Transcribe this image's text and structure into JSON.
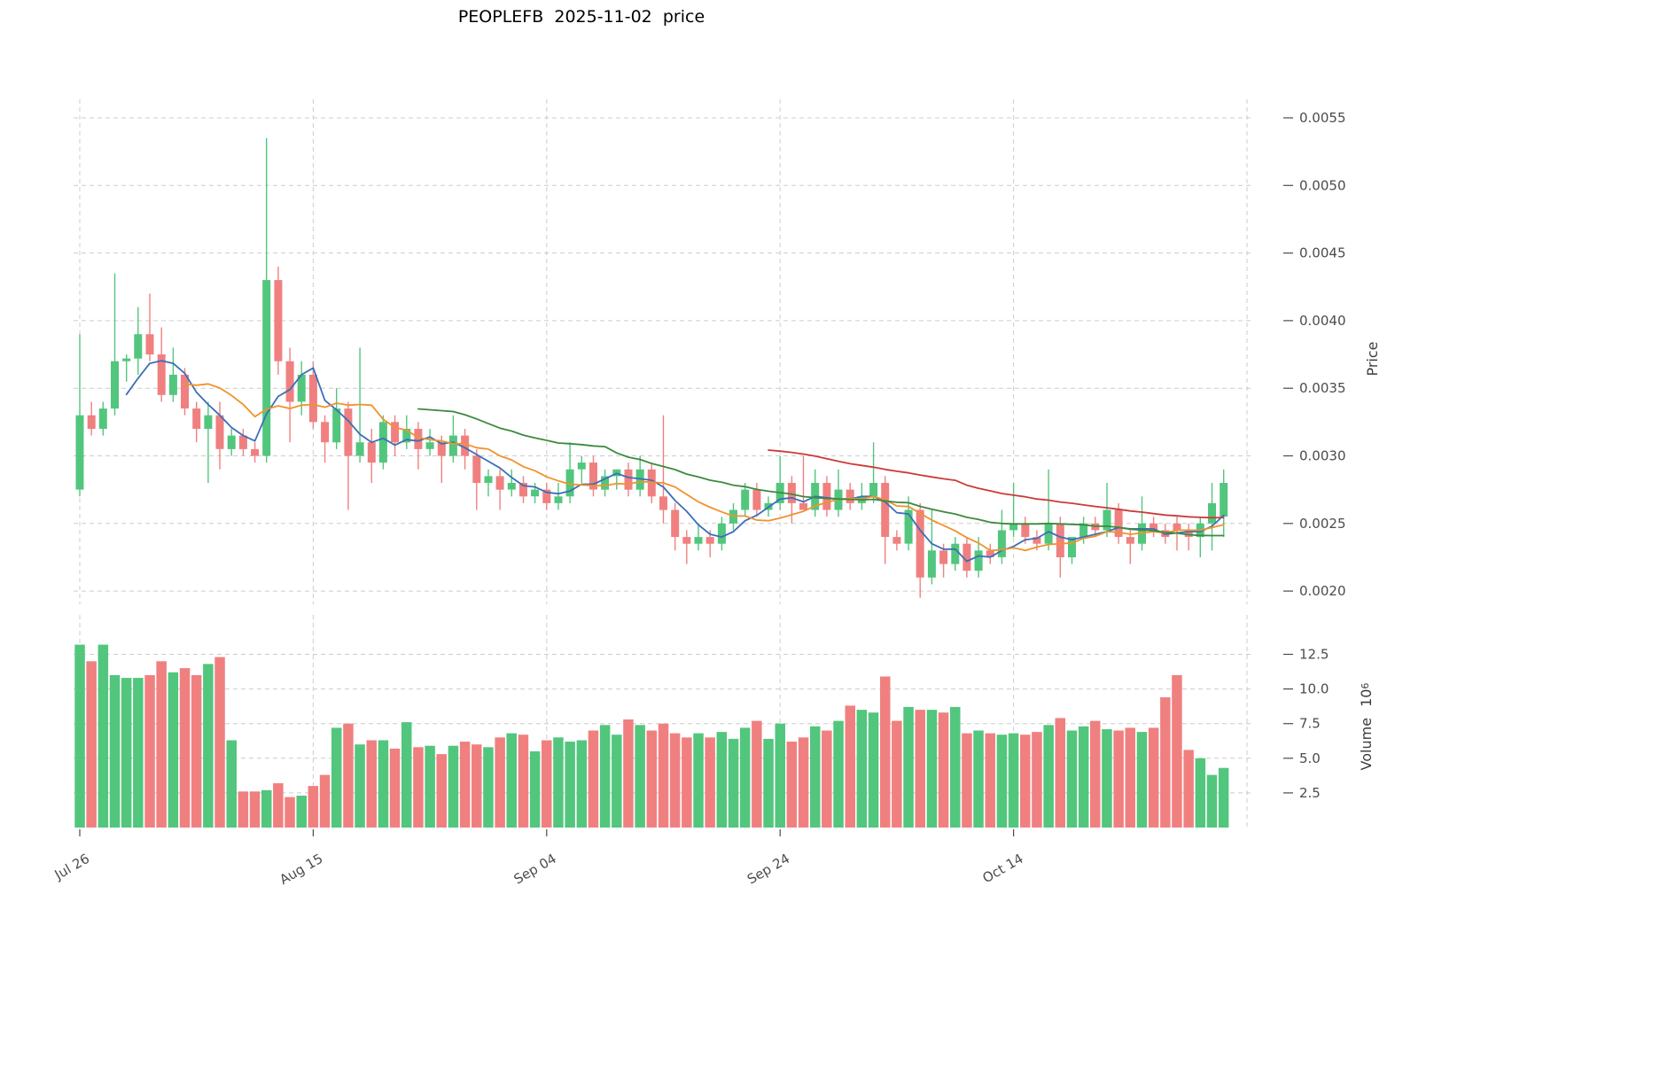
{
  "chart_data": {
    "type": "candlestick",
    "title": "PEOPLEFB  2025-11-02  price",
    "ylabel": "Price",
    "volume_label": {
      "text": "Volume",
      "base": "10",
      "exp": "6"
    },
    "grid": true,
    "ylim": [
      0.00185,
      0.0056
    ],
    "volume_ylim": [
      0,
      14
    ],
    "price_ticks": [
      0.002,
      0.0025,
      0.003,
      0.0035,
      0.004,
      0.0045,
      0.005,
      0.0055
    ],
    "volume_ticks": [
      2.5,
      5.0,
      7.5,
      10.0,
      12.5
    ],
    "x_ticks": [
      {
        "label": "Jul 26",
        "index": 0
      },
      {
        "label": "Aug 15",
        "index": 20
      },
      {
        "label": "Sep 04",
        "index": 40
      },
      {
        "label": "Sep 24",
        "index": 60
      },
      {
        "label": "Oct 14",
        "index": 80
      }
    ],
    "colors": {
      "up": "#52c67d",
      "down": "#f08080",
      "grid": "#cccccc",
      "tick_text": "#4b4b4b",
      "title_text": "#000000",
      "background": "#ffffff"
    },
    "moving_averages": [
      {
        "name": "mav5",
        "window": 5,
        "color": "#3a6fb8"
      },
      {
        "name": "mav10",
        "window": 10,
        "color": "#f0922d"
      },
      {
        "name": "mav30",
        "window": 30,
        "color": "#3c8a3f"
      },
      {
        "name": "mav60",
        "window": 60,
        "color": "#cc3a3a"
      }
    ],
    "ohlcv_columns": [
      "date",
      "open",
      "high",
      "low",
      "close",
      "volume_millions"
    ],
    "ohlcv": [
      [
        "2025-07-26",
        0.00275,
        0.0039,
        0.0027,
        0.0033,
        13.2
      ],
      [
        "2025-07-27",
        0.0033,
        0.0034,
        0.00315,
        0.0032,
        12.0
      ],
      [
        "2025-07-28",
        0.0032,
        0.0034,
        0.00315,
        0.00335,
        13.2
      ],
      [
        "2025-07-29",
        0.00335,
        0.00435,
        0.0033,
        0.0037,
        11.0
      ],
      [
        "2025-07-30",
        0.0037,
        0.00375,
        0.00355,
        0.00372,
        10.8
      ],
      [
        "2025-07-31",
        0.00372,
        0.0041,
        0.0036,
        0.0039,
        10.8
      ],
      [
        "2025-08-01",
        0.0039,
        0.0042,
        0.0037,
        0.00375,
        11.0
      ],
      [
        "2025-08-02",
        0.00375,
        0.00395,
        0.0034,
        0.00345,
        12.0
      ],
      [
        "2025-08-03",
        0.00345,
        0.0038,
        0.0034,
        0.0036,
        11.2
      ],
      [
        "2025-08-04",
        0.0036,
        0.00365,
        0.0033,
        0.00335,
        11.5
      ],
      [
        "2025-08-05",
        0.00335,
        0.0034,
        0.0031,
        0.0032,
        11.0
      ],
      [
        "2025-08-06",
        0.0032,
        0.0034,
        0.0028,
        0.0033,
        11.8
      ],
      [
        "2025-08-07",
        0.0033,
        0.0034,
        0.0029,
        0.00305,
        12.3
      ],
      [
        "2025-08-08",
        0.00305,
        0.0032,
        0.003,
        0.00315,
        6.3
      ],
      [
        "2025-08-09",
        0.00315,
        0.0032,
        0.003,
        0.00305,
        2.6
      ],
      [
        "2025-08-10",
        0.00305,
        0.0031,
        0.00295,
        0.003,
        2.6
      ],
      [
        "2025-08-11",
        0.003,
        0.00535,
        0.00295,
        0.0043,
        2.7
      ],
      [
        "2025-08-12",
        0.0043,
        0.0044,
        0.0036,
        0.0037,
        3.2
      ],
      [
        "2025-08-13",
        0.0037,
        0.0038,
        0.0031,
        0.0034,
        2.2
      ],
      [
        "2025-08-14",
        0.0034,
        0.0037,
        0.0033,
        0.0036,
        2.3
      ],
      [
        "2025-08-15",
        0.0036,
        0.0037,
        0.0032,
        0.00325,
        3.0
      ],
      [
        "2025-08-16",
        0.00325,
        0.0033,
        0.00295,
        0.0031,
        3.8
      ],
      [
        "2025-08-17",
        0.0031,
        0.0035,
        0.00305,
        0.00335,
        7.2
      ],
      [
        "2025-08-18",
        0.00335,
        0.0034,
        0.0026,
        0.003,
        7.5
      ],
      [
        "2025-08-19",
        0.003,
        0.0038,
        0.00295,
        0.0031,
        6.0
      ],
      [
        "2025-08-20",
        0.0031,
        0.0032,
        0.0028,
        0.00295,
        6.3
      ],
      [
        "2025-08-21",
        0.00295,
        0.0033,
        0.0029,
        0.00325,
        6.3
      ],
      [
        "2025-08-22",
        0.00325,
        0.0033,
        0.003,
        0.0031,
        5.7
      ],
      [
        "2025-08-23",
        0.0031,
        0.0033,
        0.00305,
        0.0032,
        7.6
      ],
      [
        "2025-08-24",
        0.0032,
        0.00325,
        0.0029,
        0.00305,
        5.8
      ],
      [
        "2025-08-25",
        0.00305,
        0.0032,
        0.003,
        0.0031,
        5.9
      ],
      [
        "2025-08-26",
        0.0031,
        0.00315,
        0.0028,
        0.003,
        5.3
      ],
      [
        "2025-08-27",
        0.003,
        0.0033,
        0.00295,
        0.00315,
        5.9
      ],
      [
        "2025-08-28",
        0.00315,
        0.0032,
        0.0029,
        0.003,
        6.2
      ],
      [
        "2025-08-29",
        0.003,
        0.00305,
        0.0026,
        0.0028,
        6.0
      ],
      [
        "2025-08-30",
        0.0028,
        0.0029,
        0.0027,
        0.00285,
        5.8
      ],
      [
        "2025-08-31",
        0.00285,
        0.0029,
        0.0026,
        0.00275,
        6.5
      ],
      [
        "2025-09-01",
        0.00275,
        0.0029,
        0.0027,
        0.0028,
        6.8
      ],
      [
        "2025-09-02",
        0.0028,
        0.00285,
        0.00265,
        0.0027,
        6.7
      ],
      [
        "2025-09-03",
        0.0027,
        0.0028,
        0.00265,
        0.00275,
        5.5
      ],
      [
        "2025-09-04",
        0.00275,
        0.0028,
        0.0026,
        0.00265,
        6.3
      ],
      [
        "2025-09-05",
        0.00265,
        0.0028,
        0.0026,
        0.0027,
        6.5
      ],
      [
        "2025-09-06",
        0.0027,
        0.0031,
        0.00265,
        0.0029,
        6.2
      ],
      [
        "2025-09-07",
        0.0029,
        0.003,
        0.0028,
        0.00295,
        6.3
      ],
      [
        "2025-09-08",
        0.00295,
        0.003,
        0.0027,
        0.00275,
        7.0
      ],
      [
        "2025-09-09",
        0.00275,
        0.0029,
        0.0027,
        0.00285,
        7.4
      ],
      [
        "2025-09-10",
        0.00285,
        0.0029,
        0.00275,
        0.0029,
        6.7
      ],
      [
        "2025-09-11",
        0.0029,
        0.00295,
        0.0027,
        0.00275,
        7.8
      ],
      [
        "2025-09-12",
        0.00275,
        0.003,
        0.0027,
        0.0029,
        7.4
      ],
      [
        "2025-09-13",
        0.0029,
        0.00295,
        0.00265,
        0.0027,
        7.0
      ],
      [
        "2025-09-14",
        0.0027,
        0.0033,
        0.0025,
        0.0026,
        7.5
      ],
      [
        "2025-09-15",
        0.0026,
        0.00265,
        0.0023,
        0.0024,
        6.8
      ],
      [
        "2025-09-16",
        0.0024,
        0.00245,
        0.0022,
        0.00235,
        6.5
      ],
      [
        "2025-09-17",
        0.00235,
        0.0025,
        0.0023,
        0.0024,
        6.8
      ],
      [
        "2025-09-18",
        0.0024,
        0.00245,
        0.00225,
        0.00235,
        6.5
      ],
      [
        "2025-09-19",
        0.00235,
        0.00255,
        0.0023,
        0.0025,
        6.9
      ],
      [
        "2025-09-20",
        0.0025,
        0.00265,
        0.00245,
        0.0026,
        6.4
      ],
      [
        "2025-09-21",
        0.0026,
        0.0028,
        0.00255,
        0.00275,
        7.2
      ],
      [
        "2025-09-22",
        0.00275,
        0.0028,
        0.00255,
        0.0026,
        7.7
      ],
      [
        "2025-09-23",
        0.0026,
        0.0027,
        0.00255,
        0.00265,
        6.4
      ],
      [
        "2025-09-24",
        0.00265,
        0.003,
        0.0026,
        0.0028,
        7.5
      ],
      [
        "2025-09-25",
        0.0028,
        0.00285,
        0.0025,
        0.00265,
        6.2
      ],
      [
        "2025-09-26",
        0.00265,
        0.003,
        0.0026,
        0.0026,
        6.5
      ],
      [
        "2025-09-27",
        0.0026,
        0.0029,
        0.00255,
        0.0028,
        7.3
      ],
      [
        "2025-09-28",
        0.0028,
        0.00285,
        0.00255,
        0.0026,
        7.0
      ],
      [
        "2025-09-29",
        0.0026,
        0.0029,
        0.00255,
        0.00275,
        7.7
      ],
      [
        "2025-09-30",
        0.00275,
        0.0028,
        0.0026,
        0.00265,
        8.8
      ],
      [
        "2025-10-01",
        0.00265,
        0.0028,
        0.0026,
        0.0027,
        8.5
      ],
      [
        "2025-10-02",
        0.0027,
        0.0031,
        0.00265,
        0.0028,
        8.3
      ],
      [
        "2025-10-03",
        0.0028,
        0.00285,
        0.0022,
        0.0024,
        10.9
      ],
      [
        "2025-10-04",
        0.0024,
        0.00245,
        0.0023,
        0.00235,
        7.7
      ],
      [
        "2025-10-05",
        0.00235,
        0.0027,
        0.0023,
        0.0026,
        8.7
      ],
      [
        "2025-10-06",
        0.0026,
        0.00265,
        0.00195,
        0.0021,
        8.5
      ],
      [
        "2025-10-07",
        0.0021,
        0.0026,
        0.00205,
        0.0023,
        8.5
      ],
      [
        "2025-10-08",
        0.0023,
        0.00235,
        0.0021,
        0.0022,
        8.3
      ],
      [
        "2025-10-09",
        0.0022,
        0.0024,
        0.00215,
        0.00235,
        8.7
      ],
      [
        "2025-10-10",
        0.00235,
        0.0024,
        0.0021,
        0.00215,
        6.8
      ],
      [
        "2025-10-11",
        0.00215,
        0.0024,
        0.0021,
        0.0023,
        7.0
      ],
      [
        "2025-10-12",
        0.0023,
        0.00235,
        0.0022,
        0.00225,
        6.8
      ],
      [
        "2025-10-13",
        0.00225,
        0.0026,
        0.0022,
        0.00245,
        6.7
      ],
      [
        "2025-10-14",
        0.00245,
        0.0028,
        0.0024,
        0.0025,
        6.8
      ],
      [
        "2025-10-15",
        0.0025,
        0.00255,
        0.00235,
        0.0024,
        6.7
      ],
      [
        "2025-10-16",
        0.0024,
        0.00245,
        0.0023,
        0.00235,
        6.9
      ],
      [
        "2025-10-17",
        0.00235,
        0.0029,
        0.0023,
        0.0025,
        7.4
      ],
      [
        "2025-10-18",
        0.0025,
        0.00255,
        0.0021,
        0.00225,
        7.9
      ],
      [
        "2025-10-19",
        0.00225,
        0.0024,
        0.0022,
        0.0024,
        7.0
      ],
      [
        "2025-10-20",
        0.0024,
        0.00255,
        0.00235,
        0.0025,
        7.3
      ],
      [
        "2025-10-21",
        0.0025,
        0.00255,
        0.0024,
        0.00245,
        7.7
      ],
      [
        "2025-10-22",
        0.00245,
        0.0028,
        0.0024,
        0.0026,
        7.1
      ],
      [
        "2025-10-23",
        0.0026,
        0.00265,
        0.00235,
        0.0024,
        7.0
      ],
      [
        "2025-10-24",
        0.0024,
        0.00245,
        0.0022,
        0.00235,
        7.2
      ],
      [
        "2025-10-25",
        0.00235,
        0.0027,
        0.0023,
        0.0025,
        6.9
      ],
      [
        "2025-10-26",
        0.0025,
        0.00255,
        0.0024,
        0.00245,
        7.2
      ],
      [
        "2025-10-27",
        0.00245,
        0.0025,
        0.00235,
        0.0024,
        9.4
      ],
      [
        "2025-10-28",
        0.0025,
        0.00255,
        0.0023,
        0.00245,
        11.0
      ],
      [
        "2025-10-29",
        0.00245,
        0.0025,
        0.0023,
        0.0024,
        5.6
      ],
      [
        "2025-10-30",
        0.0024,
        0.00255,
        0.00225,
        0.0025,
        5.0
      ],
      [
        "2025-10-31",
        0.0025,
        0.0028,
        0.0023,
        0.00265,
        3.8
      ],
      [
        "2025-11-01",
        0.00255,
        0.0029,
        0.0024,
        0.0028,
        4.3
      ]
    ]
  }
}
